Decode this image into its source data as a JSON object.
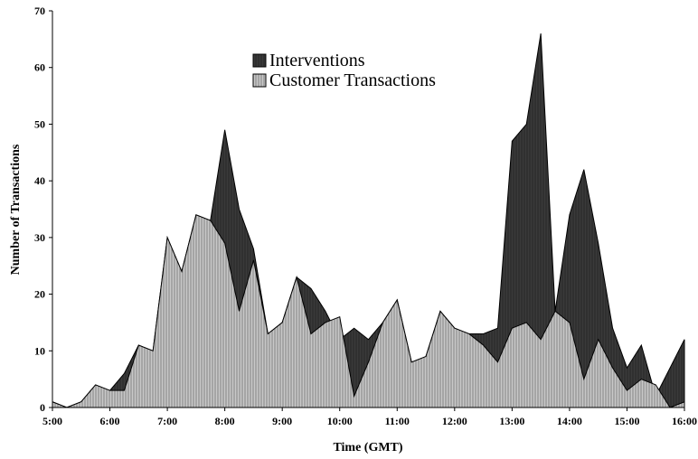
{
  "chart_data": {
    "type": "area",
    "x_label": "Time (GMT)",
    "y_label": "Number of Transactions",
    "categories": [
      "5:00",
      null,
      null,
      null,
      "6:00",
      null,
      null,
      null,
      "7:00",
      null,
      null,
      null,
      "8:00",
      null,
      null,
      null,
      "9:00",
      null,
      null,
      null,
      "10:00",
      null,
      null,
      null,
      "11:00",
      null,
      null,
      null,
      "12:00",
      null,
      null,
      null,
      "13:00",
      null,
      null,
      null,
      "14:00",
      null,
      null,
      null,
      "15:00",
      null,
      null,
      null,
      "16:00"
    ],
    "series": [
      {
        "name": "Interventions",
        "color": "#3a3a3a",
        "values": [
          1,
          0,
          1,
          4,
          3,
          6,
          11,
          10,
          30,
          24,
          34,
          33,
          49,
          35,
          28,
          13,
          15,
          23,
          21,
          17,
          12,
          14,
          12,
          15,
          19,
          8,
          9,
          17,
          14,
          13,
          13,
          14,
          47,
          50,
          66,
          17,
          34,
          42,
          29,
          14,
          7,
          11,
          2,
          7,
          12
        ]
      },
      {
        "name": "Customer Transactions",
        "color": "#c8c8c8",
        "values": [
          1,
          0,
          1,
          4,
          3,
          3,
          11,
          10,
          30,
          24,
          34,
          33,
          29,
          17,
          26,
          13,
          15,
          23,
          13,
          15,
          16,
          2,
          8,
          15,
          19,
          8,
          9,
          17,
          14,
          13,
          11,
          8,
          14,
          15,
          12,
          17,
          15,
          5,
          12,
          7,
          3,
          5,
          4,
          0,
          1
        ]
      }
    ],
    "ylim": [
      0,
      70
    ],
    "yticks": [
      0,
      10,
      20,
      30,
      40,
      50,
      60,
      70
    ],
    "legend": "top-center"
  }
}
